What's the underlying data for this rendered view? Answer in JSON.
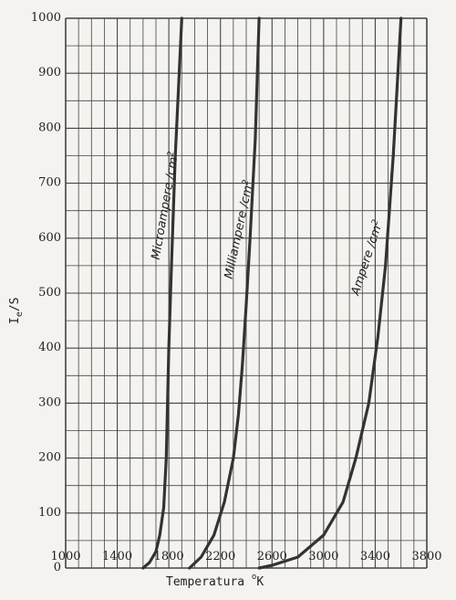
{
  "chart_data": {
    "type": "line",
    "xlabel": {
      "main": "Temperatura ",
      "sup": "o",
      "sub": "K"
    },
    "ylabel": {
      "main": "I",
      "sub": "e",
      "rest": "/S"
    },
    "xlim": [
      1000,
      3800
    ],
    "ylim": [
      0,
      1000
    ],
    "x_ticks": [
      "1000",
      "1400",
      "1800",
      "2200",
      "2600",
      "3000",
      "3400",
      "3800"
    ],
    "y_ticks": [
      "0",
      "100",
      "200",
      "300",
      "400",
      "500",
      "600",
      "700",
      "800",
      "900",
      "1000"
    ],
    "grid": true,
    "series": [
      {
        "name": "Microampere /cm2",
        "label_main": "Microampere /cm",
        "label_sup": "2",
        "x": [
          1600,
          1650,
          1700,
          1730,
          1760,
          1780,
          1790,
          1800,
          1820,
          1850,
          1880,
          1900
        ],
        "y": [
          0,
          10,
          30,
          60,
          110,
          200,
          300,
          400,
          550,
          750,
          900,
          1000
        ]
      },
      {
        "name": "Milliampere /cm2",
        "label_main": "Milliampere /cm",
        "label_sup": "2",
        "x": [
          1960,
          2050,
          2150,
          2230,
          2300,
          2340,
          2370,
          2400,
          2430,
          2470,
          2500
        ],
        "y": [
          0,
          20,
          60,
          120,
          200,
          280,
          370,
          480,
          600,
          780,
          1000
        ]
      },
      {
        "name": "Ampere /cm2",
        "label_main": "Ampere /cm",
        "label_sup": "2",
        "x": [
          2500,
          2600,
          2800,
          3000,
          3150,
          3250,
          3350,
          3420,
          3480,
          3540,
          3600
        ],
        "y": [
          0,
          5,
          20,
          60,
          120,
          200,
          300,
          420,
          550,
          750,
          1000
        ]
      }
    ]
  },
  "style": {
    "background": "#f4f3ef",
    "grid_color": "#444444",
    "line_color": "#333333"
  }
}
